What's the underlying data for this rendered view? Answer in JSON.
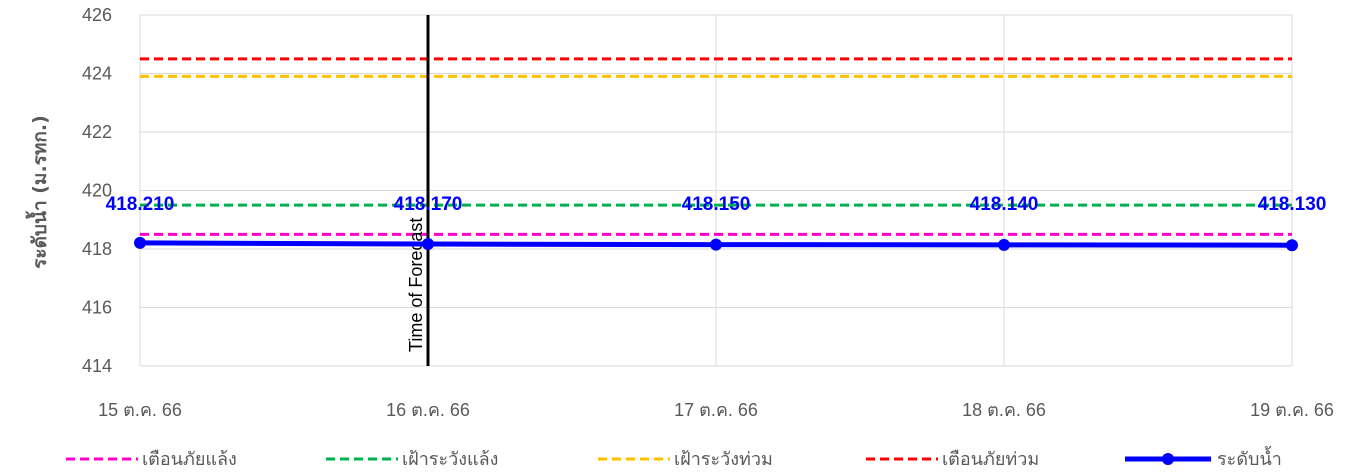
{
  "chart_data": {
    "type": "line",
    "title": "",
    "ylabel": "ระดับน้ำ (ม.รทก.)",
    "xlabel": "",
    "ylim": [
      414,
      426
    ],
    "y_ticks": [
      414,
      416,
      418,
      420,
      422,
      424,
      426
    ],
    "categories": [
      "15 ต.ค. 66",
      "16 ต.ค. 66",
      "17 ต.ค. 66",
      "18 ต.ค. 66",
      "19 ต.ค. 66"
    ],
    "grid": true,
    "legend_position": "bottom",
    "series": [
      {
        "name": "เตือนภัยแล้ง",
        "style": "dashed",
        "color": "#ff00cc",
        "values": [
          418.5,
          418.5,
          418.5,
          418.5,
          418.5
        ]
      },
      {
        "name": "เฝ้าระวังแล้ง",
        "style": "dashed",
        "color": "#00b050",
        "values": [
          419.5,
          419.5,
          419.5,
          419.5,
          419.5
        ]
      },
      {
        "name": "เฝ้าระวังท่วม",
        "style": "dashed",
        "color": "#ffc000",
        "values": [
          423.9,
          423.9,
          423.9,
          423.9,
          423.9
        ]
      },
      {
        "name": "เตือนภัยท่วม",
        "style": "dashed",
        "color": "#ff0000",
        "values": [
          424.5,
          424.5,
          424.5,
          424.5,
          424.5
        ]
      },
      {
        "name": "ระดับน้ำ",
        "style": "solid-markers",
        "color": "#0000ff",
        "values": [
          418.21,
          418.17,
          418.15,
          418.14,
          418.13
        ],
        "labels": [
          "418.210",
          "418.170",
          "418.150",
          "418.140",
          "418.130"
        ]
      }
    ],
    "annotations": [
      {
        "type": "vline",
        "x": "16 ต.ค. 66",
        "text": "Time of Forecast",
        "color": "#000000"
      }
    ]
  }
}
